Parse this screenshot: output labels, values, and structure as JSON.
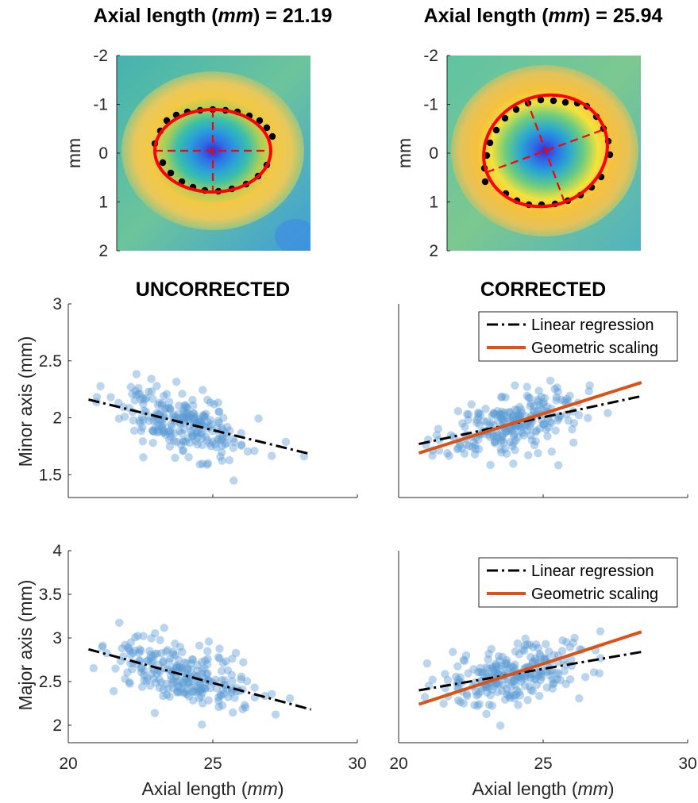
{
  "figure": {
    "top_titles": [
      {
        "prefix": "Axial length (",
        "unit": "mm",
        "suffix": ") = 21.19"
      },
      {
        "prefix": "Axial length (",
        "unit": "mm",
        "suffix": ") = 25.94"
      }
    ],
    "section_titles": [
      "UNCORRECTED",
      "CORRECTED"
    ],
    "heatmap_ylabel": "mm",
    "minor_ylabel": "Minor axis (mm)",
    "major_ylabel": "Major axis (mm)",
    "xlabel": {
      "prefix": "Axial length (",
      "unit": "mm",
      "suffix": ")"
    },
    "legend": {
      "linear": "Linear regression",
      "geometric": "Geometric scaling"
    },
    "colors": {
      "scatter": "#5b9bd5",
      "linear": "#000000",
      "geometric": "#d95319",
      "ellipse": "#ff0000",
      "axes": "#262626"
    }
  },
  "chart_data": [
    {
      "type": "heatmap",
      "title": "Axial length (mm) = 21.19",
      "ylabel": "mm",
      "ylim": [
        -2,
        2
      ],
      "yticks": [
        "-2",
        "-1",
        "0",
        "1",
        "2"
      ],
      "ellipse": {
        "center": [
          0,
          0
        ],
        "semi_axis_horizontal": 1.21,
        "semi_axis_vertical": 0.86,
        "center_y": -0.05
      }
    },
    {
      "type": "heatmap",
      "title": "Axial length (mm) = 25.94",
      "ylabel": "mm",
      "ylim": [
        -2,
        2
      ],
      "yticks": [
        "-2",
        "-1",
        "0",
        "1",
        "2"
      ],
      "ellipse": {
        "center": [
          0,
          0
        ],
        "semi_axis_major": 1.25,
        "semi_axis_minor": 1.12,
        "rotation_deg": -20
      }
    },
    {
      "type": "scatter",
      "title": "UNCORRECTED",
      "xlabel": "",
      "ylabel": "Minor axis (mm)",
      "xlim": [
        20,
        30
      ],
      "ylim": [
        1.3,
        3
      ],
      "yticks": [
        "1.5",
        "2",
        "2.5",
        "3"
      ],
      "series": [
        {
          "name": "Linear regression",
          "x": [
            20.7,
            28.4
          ],
          "y": [
            2.16,
            1.68
          ]
        }
      ]
    },
    {
      "type": "scatter",
      "title": "CORRECTED",
      "xlabel": "",
      "ylabel": "",
      "xlim": [
        20,
        30
      ],
      "ylim": [
        1.3,
        3
      ],
      "legend": "top-right",
      "series": [
        {
          "name": "Linear regression",
          "x": [
            20.7,
            28.4
          ],
          "y": [
            1.77,
            2.19
          ]
        },
        {
          "name": "Geometric scaling",
          "x": [
            20.7,
            28.4
          ],
          "y": [
            1.69,
            2.31
          ]
        }
      ]
    },
    {
      "type": "scatter",
      "title": "",
      "xlabel": "Axial length (mm)",
      "ylabel": "Major axis (mm)",
      "xlim": [
        20,
        30
      ],
      "ylim": [
        1.8,
        4
      ],
      "xticks": [
        "20",
        "25",
        "30"
      ],
      "yticks": [
        "2",
        "2.5",
        "3",
        "3.5",
        "4"
      ],
      "series": [
        {
          "name": "Linear regression",
          "x": [
            20.7,
            28.4
          ],
          "y": [
            2.87,
            2.18
          ]
        }
      ]
    },
    {
      "type": "scatter",
      "title": "",
      "xlabel": "Axial length (mm)",
      "ylabel": "",
      "xlim": [
        20,
        30
      ],
      "ylim": [
        1.8,
        4
      ],
      "xticks": [
        "20",
        "25",
        "30"
      ],
      "legend": "top-right",
      "series": [
        {
          "name": "Linear regression",
          "x": [
            20.7,
            28.4
          ],
          "y": [
            2.4,
            2.84
          ]
        },
        {
          "name": "Geometric scaling",
          "x": [
            20.7,
            28.4
          ],
          "y": [
            2.24,
            3.07
          ]
        }
      ]
    }
  ]
}
